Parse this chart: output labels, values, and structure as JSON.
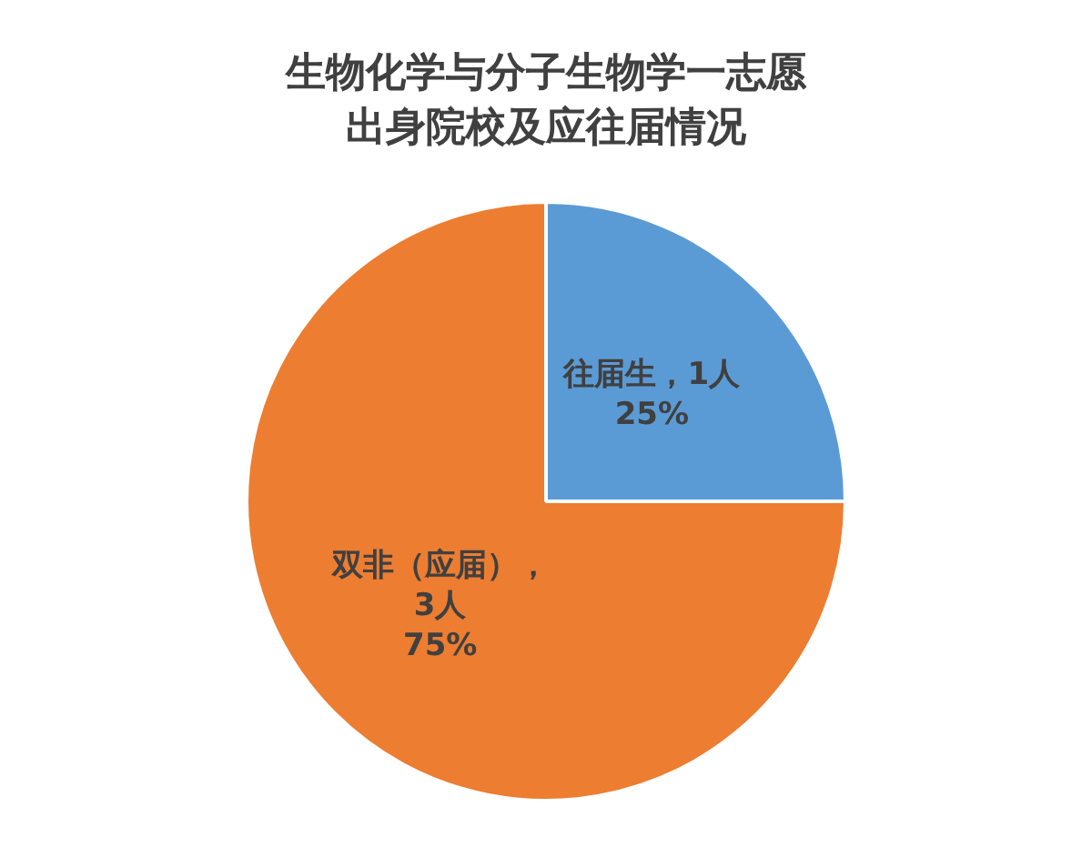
{
  "chart_data": {
    "type": "pie",
    "title": "生物化学与分子生物学一志愿出身院校及应往届情况",
    "categories": [
      "往届生",
      "双非（应届）"
    ],
    "values": [
      1,
      3
    ],
    "colors": [
      "#5b9bd5",
      "#ed7d31"
    ],
    "value_labels": [
      "，1人\n25%",
      "，\n3人\n75%"
    ],
    "legend": false
  }
}
